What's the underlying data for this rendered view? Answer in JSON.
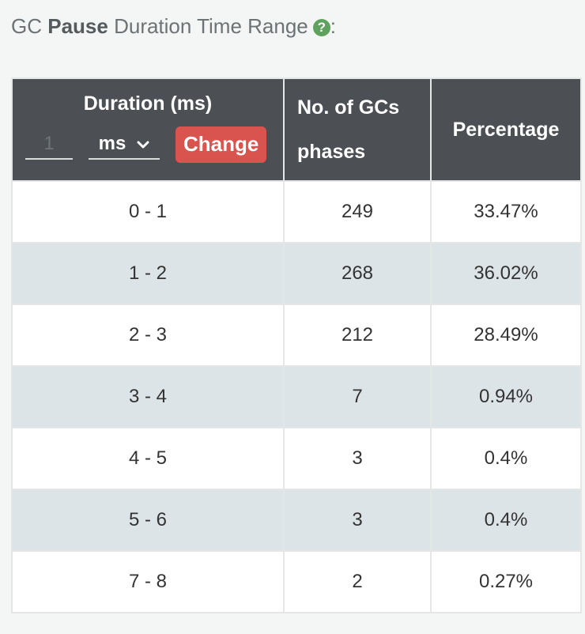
{
  "title": {
    "prefix": "GC",
    "bold": "Pause",
    "suffix": "Duration Time Range",
    "help_icon": "?",
    "colon": ":"
  },
  "table": {
    "headers": {
      "duration": "Duration (ms)",
      "count_line1": "No. of GCs",
      "count_line2": "phases",
      "percentage": "Percentage"
    },
    "interval_value": "1",
    "unit": "ms",
    "change_label": "Change",
    "rows": [
      {
        "range": "0 - 1",
        "count": "249",
        "percentage": "33.47%"
      },
      {
        "range": "1 - 2",
        "count": "268",
        "percentage": "36.02%"
      },
      {
        "range": "2 - 3",
        "count": "212",
        "percentage": "28.49%"
      },
      {
        "range": "3 - 4",
        "count": "7",
        "percentage": "0.94%"
      },
      {
        "range": "4 - 5",
        "count": "3",
        "percentage": "0.4%"
      },
      {
        "range": "5 - 6",
        "count": "3",
        "percentage": "0.4%"
      },
      {
        "range": "7 - 8",
        "count": "2",
        "percentage": "0.27%"
      }
    ]
  },
  "colors": {
    "header_bg": "#4c5054",
    "stripe": "#dde4e8",
    "change_button": "#d9534f",
    "help_icon": "#5fa25f"
  }
}
